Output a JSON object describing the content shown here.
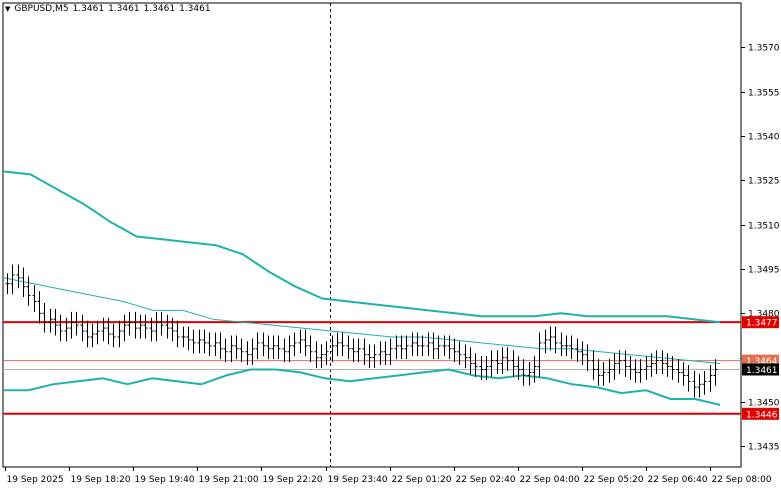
{
  "window": {
    "symbol": "GBPUSD,M5",
    "ohlc": [
      "1.3461",
      "1.3461",
      "1.3461",
      "1.3461"
    ],
    "menu_arrow_icon": "triangle-down"
  },
  "colors": {
    "background": "#ffffff",
    "frame": "#000000",
    "grid": "#c8c8c8",
    "bars": "#000000",
    "bands": "#20b2aa",
    "middle_band": "#20b2aa",
    "support_resistance": "#e00000",
    "current_price_line": "#e07050",
    "bid_line": "#b0b0b0",
    "crosshair": "#000000"
  },
  "chart_data": {
    "type": "line",
    "ylim": [
      1.3428,
      1.3585
    ],
    "yticks": [
      "1.3570",
      "1.3555",
      "1.3540",
      "1.3525",
      "1.3510",
      "1.3495",
      "1.3480",
      "1.3465",
      "1.3450",
      "1.3435"
    ],
    "xticks": [
      "19 Sep 2025",
      "19 Sep 18:20",
      "19 Sep 19:40",
      "19 Sep 21:00",
      "19 Sep 22:20",
      "19 Sep 23:40",
      "22 Sep 01:20",
      "22 Sep 02:40",
      "22 Sep 04:00",
      "22 Sep 05:20",
      "22 Sep 06:40",
      "22 Sep 08:00"
    ],
    "close": [
      1.349,
      1.3493,
      1.3492,
      1.3489,
      1.3486,
      1.3484,
      1.348,
      1.3477,
      1.3478,
      1.3476,
      1.3474,
      1.3475,
      1.3477,
      1.3476,
      1.3474,
      1.3472,
      1.3473,
      1.3474,
      1.3475,
      1.3473,
      1.3472,
      1.3474,
      1.3476,
      1.3477,
      1.3475,
      1.3476,
      1.3475,
      1.3474,
      1.3477,
      1.3476,
      1.3475,
      1.3474,
      1.3472,
      1.3472,
      1.3471,
      1.347,
      1.3471,
      1.347,
      1.3469,
      1.347,
      1.3468,
      1.3467,
      1.3469,
      1.3468,
      1.3467,
      1.3466,
      1.3468,
      1.347,
      1.3469,
      1.3468,
      1.3469,
      1.3468,
      1.3467,
      1.3469,
      1.347,
      1.3471,
      1.3469,
      1.3467,
      1.3465,
      1.3466,
      1.3467,
      1.3469,
      1.347,
      1.3469,
      1.3468,
      1.3467,
      1.3468,
      1.3466,
      1.3465,
      1.3466,
      1.3467,
      1.3466,
      1.3468,
      1.3469,
      1.3468,
      1.3469,
      1.347,
      1.3469,
      1.3469,
      1.347,
      1.3468,
      1.3469,
      1.3469,
      1.3468,
      1.3467,
      1.3466,
      1.3465,
      1.3463,
      1.3462,
      1.3461,
      1.3462,
      1.3464,
      1.3463,
      1.3465,
      1.3464,
      1.3462,
      1.3461,
      1.3459,
      1.346,
      1.3462,
      1.347,
      1.3471,
      1.3472,
      1.347,
      1.3469,
      1.3469,
      1.3468,
      1.3467,
      1.3466,
      1.3464,
      1.3461,
      1.3459,
      1.346,
      1.3461,
      1.3463,
      1.3464,
      1.3462,
      1.3461,
      1.346,
      1.3461,
      1.3462,
      1.3463,
      1.3464,
      1.3463,
      1.3462,
      1.3461,
      1.346,
      1.3459,
      1.3457,
      1.3455,
      1.3456,
      1.3457,
      1.3459,
      1.3461
    ],
    "upper_band": [
      1.3528,
      1.3527,
      1.3522,
      1.3517,
      1.3511,
      1.3506,
      1.3505,
      1.3504,
      1.3503,
      1.35,
      1.3494,
      1.3489,
      1.3485,
      1.3484,
      1.3483,
      1.3482,
      1.3481,
      1.348,
      1.3479,
      1.3479,
      1.3479,
      1.348,
      1.3479,
      1.3479,
      1.3479,
      1.3479,
      1.3478,
      1.3477
    ],
    "middle_band": [
      1.3492,
      1.349,
      1.3488,
      1.3486,
      1.3484,
      1.3481,
      1.3481,
      1.3478,
      1.3477,
      1.3476,
      1.3475,
      1.3474,
      1.3473,
      1.3472,
      1.3472,
      1.3471,
      1.347,
      1.3469,
      1.3468,
      1.3468,
      1.3467,
      1.3466,
      1.3465,
      1.3464,
      1.3463
    ],
    "lower_band": [
      1.3454,
      1.3454,
      1.3456,
      1.3457,
      1.3458,
      1.3456,
      1.3458,
      1.3457,
      1.3456,
      1.3459,
      1.3461,
      1.3461,
      1.346,
      1.3458,
      1.3457,
      1.3458,
      1.3459,
      1.346,
      1.3461,
      1.3459,
      1.3458,
      1.3459,
      1.3458,
      1.3456,
      1.3455,
      1.3453,
      1.3454,
      1.3451,
      1.3451,
      1.3449
    ],
    "hlines": [
      {
        "value": 1.3477,
        "label": "1.3477",
        "kind": "resistance"
      },
      {
        "value": 1.3464,
        "label": "1.3464",
        "kind": "current"
      },
      {
        "value": 1.3461,
        "label": "1.3461",
        "kind": "bid"
      },
      {
        "value": 1.3446,
        "label": "1.3446",
        "kind": "support"
      }
    ],
    "crosshair_x_label": "19 Sep 23:40"
  }
}
